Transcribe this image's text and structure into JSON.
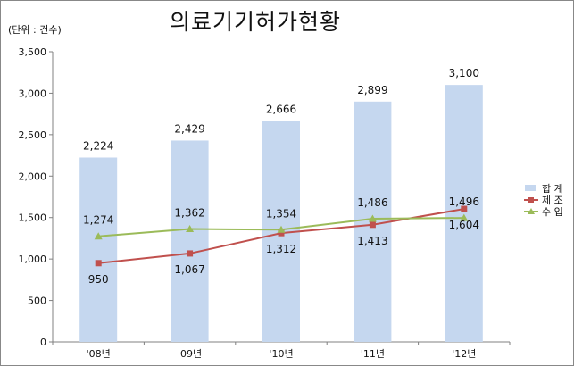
{
  "chart_data": {
    "type": "bar+line",
    "title": "의료기기허가현황",
    "unit_label": "(단위 : 건수)",
    "categories": [
      "'08년",
      "'09년",
      "'10년",
      "'11년",
      "'12년"
    ],
    "ylim": [
      0,
      3500
    ],
    "y_ticks": [
      0,
      500,
      1000,
      1500,
      2000,
      2500,
      3000,
      3500
    ],
    "y_tick_labels": [
      "0",
      "500",
      "1,000",
      "1,500",
      "2,000",
      "2,500",
      "3,000",
      "3,500"
    ],
    "grid": false,
    "legend_position": "right",
    "series": [
      {
        "name": "합 계",
        "type": "bar",
        "color": "#c5d7ef",
        "values": [
          2224,
          2429,
          2666,
          2899,
          3100
        ],
        "labels": [
          "2,224",
          "2,429",
          "2,666",
          "2,899",
          "3,100"
        ]
      },
      {
        "name": "제 조",
        "type": "line",
        "marker": "square",
        "color": "#c0504d",
        "values": [
          950,
          1067,
          1312,
          1413,
          1604
        ],
        "labels": [
          "950",
          "1,067",
          "1,312",
          "1,413",
          "1,604"
        ]
      },
      {
        "name": "수 입",
        "type": "line",
        "marker": "triangle",
        "color": "#9bbb59",
        "values": [
          1274,
          1362,
          1354,
          1486,
          1496
        ],
        "labels": [
          "1,274",
          "1,362",
          "1,354",
          "1,486",
          "1,496"
        ]
      }
    ]
  }
}
